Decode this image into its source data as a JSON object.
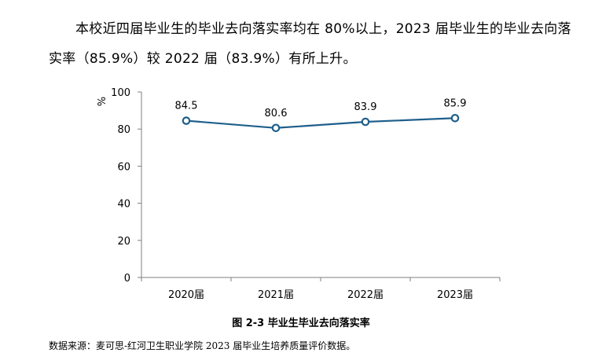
{
  "paragraph": "本校近四届毕业生的毕业去向落实率均在 80%以上，2023 届毕业生的毕业去向落实率（85.9%）较 2022 届（83.9%）有所上升。",
  "caption": "图 2-3 毕业生毕业去向落实率",
  "source": "数据来源：麦可思-红河卫生职业学院 2023 届毕业生培养质量评价数据。",
  "colors": {
    "line": "#1f5f8b",
    "axis": "#7f7f7f",
    "marker_fill": "#ffffff"
  },
  "chart_data": {
    "type": "line",
    "title": "",
    "xlabel": "",
    "ylabel": "%",
    "categories": [
      "2020届",
      "2021届",
      "2022届",
      "2023届"
    ],
    "values": [
      84.5,
      80.6,
      83.9,
      85.9
    ],
    "value_labels": [
      "84.5",
      "80.6",
      "83.9",
      "85.9"
    ],
    "ylim": [
      0,
      100
    ],
    "yticks": [
      "0",
      "20",
      "40",
      "60",
      "80",
      "100"
    ],
    "grid": false,
    "legend": "none"
  }
}
